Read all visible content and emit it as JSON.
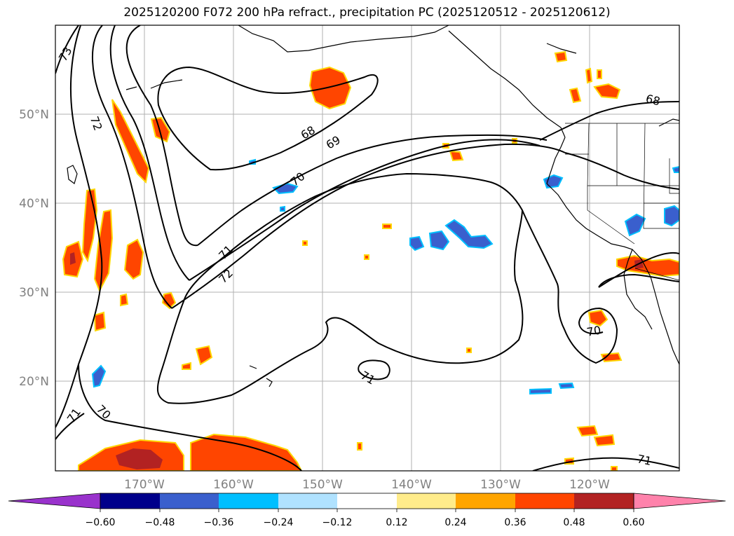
{
  "map": {
    "title": "2025120200 F072 200 hPa refract., precipitation PC (2025120512 - 2025120612)",
    "longitude_labels": [
      "170°W",
      "160°W",
      "150°W",
      "140°W",
      "130°W",
      "120°W"
    ],
    "latitude_labels": [
      "50°N",
      "40°N",
      "30°N",
      "20°N"
    ],
    "contour_labels": [
      "73",
      "72",
      "68",
      "69",
      "70",
      "71",
      "72",
      "68",
      "70",
      "71",
      "71",
      "70",
      "71"
    ]
  },
  "colorbar": {
    "ticks": [
      "−0.60",
      "−0.48",
      "−0.36",
      "−0.24",
      "−0.12",
      "0.12",
      "0.24",
      "0.36",
      "0.48",
      "0.60"
    ],
    "colors": [
      "#9932cc",
      "#00008b",
      "#3a5fcd",
      "#00bfff",
      "#b0e2ff",
      "#ffffff",
      "#ffec8b",
      "#ffa500",
      "#ff4500",
      "#b22222",
      "#ff82ab"
    ]
  }
}
